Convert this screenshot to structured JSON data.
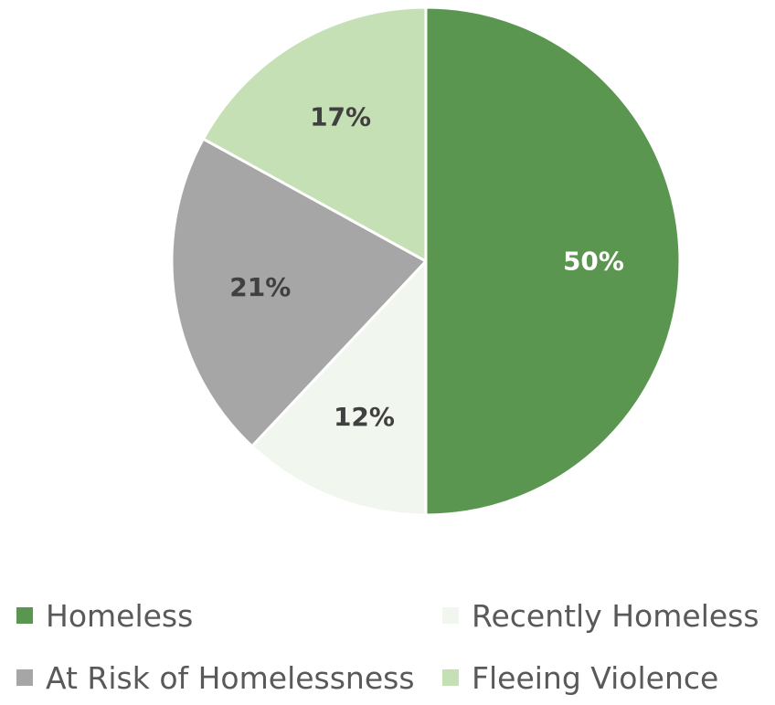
{
  "chart_data": {
    "type": "pie",
    "title": "",
    "slices": [
      {
        "name": "Homeless",
        "value": 50,
        "label": "50%",
        "color": "#5a9650",
        "label_color": "#ffffff"
      },
      {
        "name": "Recently Homeless",
        "value": 12,
        "label": "12%",
        "color": "#f1f7ee",
        "label_color": "#404040"
      },
      {
        "name": "At Risk of Homelessness",
        "value": 21,
        "label": "21%",
        "color": "#a6a6a6",
        "label_color": "#404040"
      },
      {
        "name": "Fleeing Violence",
        "value": 17,
        "label": "17%",
        "color": "#c5e0b4",
        "label_color": "#404040"
      }
    ],
    "legend_position": "bottom",
    "start_angle_deg": 0,
    "direction": "clockwise"
  }
}
